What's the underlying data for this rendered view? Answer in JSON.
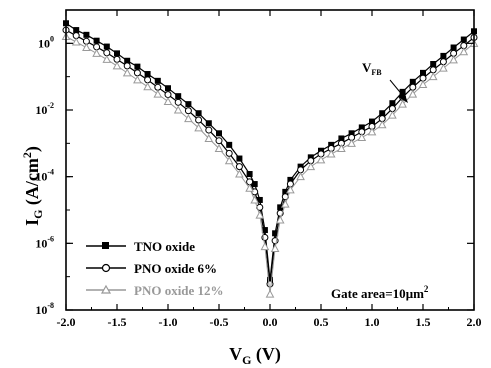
{
  "chart_data": {
    "type": "scatter",
    "xlabel": {
      "main": "V",
      "sub": "G",
      "unit": " (V)"
    },
    "ylabel": {
      "main": "I",
      "sub": "G",
      "unit": " (A/cm",
      "sup": "2",
      "close": ")"
    },
    "xlim": [
      -2.0,
      2.0
    ],
    "ylim_log10": [
      -8,
      1
    ],
    "y_scale": "log",
    "x_ticks": [
      -2.0,
      -1.5,
      -1.0,
      -0.5,
      0.0,
      0.5,
      1.0,
      1.5,
      2.0
    ],
    "x_tick_labels": [
      "-2.0",
      "-1.5",
      "-1.0",
      "-0.5",
      "0.0",
      "0.5",
      "1.0",
      "1.5",
      "2.0"
    ],
    "y_tick_labels": [
      {
        "base": "10",
        "exp": "0",
        "value": 1
      },
      {
        "base": "10",
        "exp": "-2",
        "value": 0.01
      },
      {
        "base": "10",
        "exp": "-4",
        "value": 0.0001
      },
      {
        "base": "10",
        "exp": "-6",
        "value": 1e-06
      },
      {
        "base": "10",
        "exp": "-8",
        "value": 1e-08
      }
    ],
    "legend_placement": "bottom-left",
    "annotations": {
      "vfb": {
        "main": "V",
        "sub": "FB",
        "arrow_to": {
          "x": 1.05,
          "y": 0.005
        }
      },
      "gate_area": {
        "text": "Gate area=10",
        "mu": "μ",
        "unit": "m",
        "sup": "2"
      }
    },
    "series": [
      {
        "name": "TNO oxide",
        "marker": "square-filled",
        "color": "#000000",
        "points": [
          [
            -2.0,
            4.0
          ],
          [
            -1.9,
            2.5
          ],
          [
            -1.8,
            1.8
          ],
          [
            -1.7,
            1.2
          ],
          [
            -1.6,
            0.8
          ],
          [
            -1.5,
            0.5
          ],
          [
            -1.4,
            0.3
          ],
          [
            -1.3,
            0.2
          ],
          [
            -1.2,
            0.12
          ],
          [
            -1.1,
            0.075
          ],
          [
            -1.0,
            0.045
          ],
          [
            -0.9,
            0.026
          ],
          [
            -0.8,
            0.015
          ],
          [
            -0.7,
            0.008
          ],
          [
            -0.6,
            0.004
          ],
          [
            -0.5,
            0.002
          ],
          [
            -0.4,
            0.0009
          ],
          [
            -0.3,
            0.00035
          ],
          [
            -0.2,
            0.00012
          ],
          [
            -0.15,
            6e-05
          ],
          [
            -0.1,
            2e-05
          ],
          [
            -0.05,
            2.5e-06
          ],
          [
            0.0,
            8e-08
          ],
          [
            0.05,
            2e-06
          ],
          [
            0.1,
            1.2e-05
          ],
          [
            0.15,
            3.5e-05
          ],
          [
            0.2,
            8e-05
          ],
          [
            0.3,
            0.0002
          ],
          [
            0.4,
            0.00038
          ],
          [
            0.5,
            0.0006
          ],
          [
            0.6,
            0.0009
          ],
          [
            0.7,
            0.0014
          ],
          [
            0.8,
            0.002
          ],
          [
            0.9,
            0.003
          ],
          [
            1.0,
            0.0045
          ],
          [
            1.1,
            0.008
          ],
          [
            1.2,
            0.016
          ],
          [
            1.3,
            0.035
          ],
          [
            1.4,
            0.07
          ],
          [
            1.5,
            0.13
          ],
          [
            1.6,
            0.24
          ],
          [
            1.7,
            0.42
          ],
          [
            1.8,
            0.75
          ],
          [
            1.9,
            1.3
          ],
          [
            2.0,
            2.3
          ]
        ]
      },
      {
        "name": "PNO oxide 6%",
        "marker": "circle-open",
        "color": "#000000",
        "points": [
          [
            -2.0,
            2.5
          ],
          [
            -1.9,
            1.7
          ],
          [
            -1.8,
            1.15
          ],
          [
            -1.7,
            0.78
          ],
          [
            -1.6,
            0.52
          ],
          [
            -1.5,
            0.33
          ],
          [
            -1.4,
            0.21
          ],
          [
            -1.3,
            0.13
          ],
          [
            -1.2,
            0.08
          ],
          [
            -1.1,
            0.048
          ],
          [
            -1.0,
            0.029
          ],
          [
            -0.9,
            0.017
          ],
          [
            -0.8,
            0.0095
          ],
          [
            -0.7,
            0.005
          ],
          [
            -0.6,
            0.0025
          ],
          [
            -0.5,
            0.0012
          ],
          [
            -0.4,
            0.0005
          ],
          [
            -0.3,
            0.0002
          ],
          [
            -0.2,
            7e-05
          ],
          [
            -0.15,
            3.5e-05
          ],
          [
            -0.1,
            1.2e-05
          ],
          [
            -0.05,
            1.5e-06
          ],
          [
            0.0,
            6e-08
          ],
          [
            0.05,
            1.2e-06
          ],
          [
            0.1,
            8e-06
          ],
          [
            0.15,
            2.5e-05
          ],
          [
            0.2,
            6e-05
          ],
          [
            0.3,
            0.00016
          ],
          [
            0.4,
            0.0003
          ],
          [
            0.5,
            0.00048
          ],
          [
            0.6,
            0.0007
          ],
          [
            0.7,
            0.001
          ],
          [
            0.8,
            0.0015
          ],
          [
            0.9,
            0.0022
          ],
          [
            1.0,
            0.0032
          ],
          [
            1.1,
            0.0055
          ],
          [
            1.2,
            0.011
          ],
          [
            1.3,
            0.024
          ],
          [
            1.4,
            0.048
          ],
          [
            1.5,
            0.09
          ],
          [
            1.6,
            0.16
          ],
          [
            1.7,
            0.28
          ],
          [
            1.8,
            0.5
          ],
          [
            1.9,
            0.85
          ],
          [
            2.0,
            1.5
          ]
        ]
      },
      {
        "name": "PNO oxide 12%",
        "marker": "triangle-open",
        "color": "#999999",
        "points": [
          [
            -2.0,
            1.6
          ],
          [
            -1.9,
            1.1
          ],
          [
            -1.8,
            0.75
          ],
          [
            -1.7,
            0.5
          ],
          [
            -1.6,
            0.33
          ],
          [
            -1.5,
            0.21
          ],
          [
            -1.4,
            0.13
          ],
          [
            -1.3,
            0.08
          ],
          [
            -1.2,
            0.05
          ],
          [
            -1.1,
            0.03
          ],
          [
            -1.0,
            0.018
          ],
          [
            -0.9,
            0.01
          ],
          [
            -0.8,
            0.0055
          ],
          [
            -0.7,
            0.0029
          ],
          [
            -0.6,
            0.0014
          ],
          [
            -0.5,
            0.0007
          ],
          [
            -0.4,
            0.0003
          ],
          [
            -0.3,
            0.00012
          ],
          [
            -0.2,
            4.5e-05
          ],
          [
            -0.15,
            2e-05
          ],
          [
            -0.1,
            7e-06
          ],
          [
            -0.05,
            8e-07
          ],
          [
            0.0,
            3e-08
          ],
          [
            0.05,
            7e-07
          ],
          [
            0.1,
            5e-06
          ],
          [
            0.15,
            1.5e-05
          ],
          [
            0.2,
            4e-05
          ],
          [
            0.3,
            0.0001
          ],
          [
            0.4,
            0.0002
          ],
          [
            0.5,
            0.00032
          ],
          [
            0.6,
            0.00048
          ],
          [
            0.7,
            0.0007
          ],
          [
            0.8,
            0.001
          ],
          [
            0.9,
            0.0015
          ],
          [
            1.0,
            0.0022
          ],
          [
            1.1,
            0.0036
          ],
          [
            1.2,
            0.007
          ],
          [
            1.3,
            0.015
          ],
          [
            1.4,
            0.03
          ],
          [
            1.5,
            0.058
          ],
          [
            1.6,
            0.1
          ],
          [
            1.7,
            0.18
          ],
          [
            1.8,
            0.32
          ],
          [
            1.9,
            0.56
          ],
          [
            2.0,
            1.0
          ]
        ]
      }
    ]
  }
}
